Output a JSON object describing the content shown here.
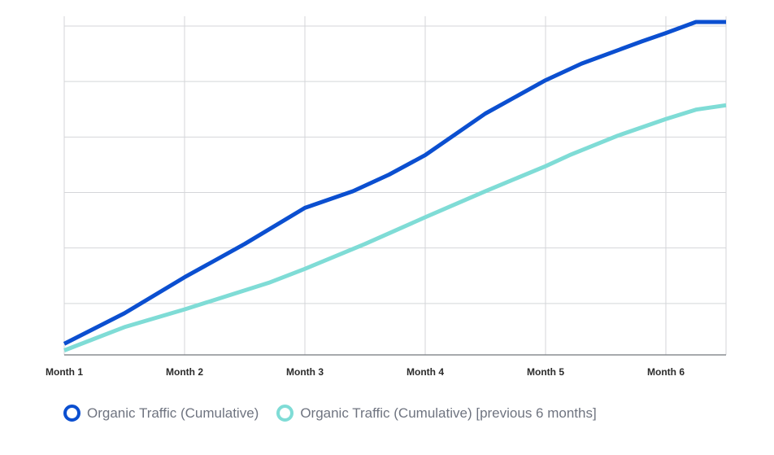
{
  "chart_data": {
    "type": "line",
    "title": "",
    "xlabel": "",
    "ylabel": "",
    "categories": [
      "Month 1",
      "Month 2",
      "Month 3",
      "Month 4",
      "Month 5",
      "Month 6"
    ],
    "x_range": [
      1,
      6.5
    ],
    "ylim": [
      0,
      6
    ],
    "grid": true,
    "legend_position": "bottom-left",
    "series": [
      {
        "name": "Organic Traffic (Cumulative)",
        "color": "#0b4fd0",
        "points": [
          [
            1,
            0.2
          ],
          [
            1.5,
            0.75
          ],
          [
            2,
            1.4
          ],
          [
            2.5,
            2.0
          ],
          [
            3,
            2.65
          ],
          [
            3.4,
            2.95
          ],
          [
            3.7,
            3.25
          ],
          [
            4,
            3.6
          ],
          [
            4.5,
            4.35
          ],
          [
            5,
            4.95
          ],
          [
            5.3,
            5.25
          ],
          [
            5.8,
            5.65
          ],
          [
            6,
            5.8
          ],
          [
            6.25,
            6.0
          ],
          [
            6.5,
            6.0
          ]
        ]
      },
      {
        "name": "Organic Traffic (Cumulative) [previous 6 months]",
        "color": "#7fdcd6",
        "points": [
          [
            1,
            0.08
          ],
          [
            1.5,
            0.5
          ],
          [
            2,
            0.82
          ],
          [
            2.7,
            1.3
          ],
          [
            3,
            1.55
          ],
          [
            3.5,
            2.0
          ],
          [
            4,
            2.48
          ],
          [
            4.5,
            2.95
          ],
          [
            5,
            3.4
          ],
          [
            5.2,
            3.6
          ],
          [
            5.6,
            3.95
          ],
          [
            6,
            4.25
          ],
          [
            6.25,
            4.42
          ],
          [
            6.5,
            4.5
          ]
        ]
      }
    ]
  }
}
